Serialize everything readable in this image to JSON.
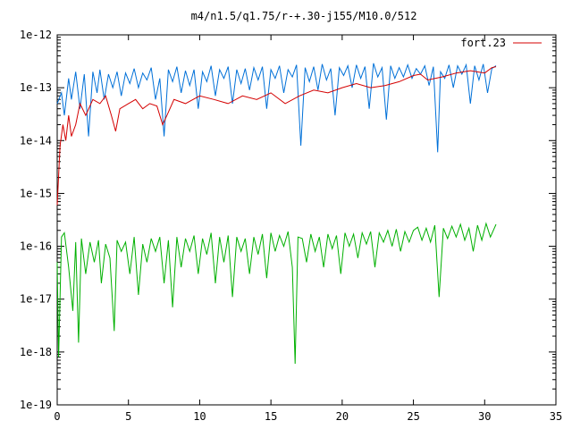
{
  "chart_data": {
    "type": "line",
    "title": "m4/n1.5/q1.75/r-+.30-j155/M10.0/512",
    "xlabel": "",
    "ylabel": "",
    "xlim": [
      0,
      35
    ],
    "ylim": [
      1e-19,
      1e-12
    ],
    "y_scale": "log",
    "x_ticks": [
      "0",
      "5",
      "10",
      "15",
      "20",
      "25",
      "30",
      "35"
    ],
    "x_tick_values": [
      0,
      5,
      10,
      15,
      20,
      25,
      30,
      35
    ],
    "y_ticks": [
      "1e-19",
      "1e-18",
      "1e-17",
      "1e-16",
      "1e-15",
      "1e-14",
      "1e-13",
      "1e-12"
    ],
    "y_tick_exponents": [
      -19,
      -18,
      -17,
      -16,
      -15,
      -14,
      -13,
      -12
    ],
    "grid": false,
    "legend": {
      "position": "top-right",
      "entries": [
        "fort.23"
      ]
    },
    "colors": {
      "red": "#d40000",
      "blue": "#0070d8",
      "green": "#00b000"
    },
    "series": [
      {
        "name": "fort.23",
        "color": "#d40000",
        "x": [
          0,
          0.2,
          0.4,
          0.6,
          0.8,
          1.0,
          1.3,
          1.6,
          2.0,
          2.5,
          3.0,
          3.4,
          3.8,
          4.1,
          4.4,
          5.0,
          5.5,
          6.0,
          6.5,
          7.0,
          7.4,
          7.7,
          8.2,
          9.0,
          10.0,
          11.0,
          12.0,
          13.0,
          14.0,
          15.0,
          16.0,
          17.0,
          18.0,
          19.0,
          20.0,
          21.0,
          22.0,
          23.0,
          24.0,
          25.0,
          25.5,
          26.0,
          27.0,
          28.0,
          29.0,
          30.0,
          30.5,
          30.8
        ],
        "y": [
          6e-16,
          8e-15,
          2e-14,
          1e-14,
          3e-14,
          1.2e-14,
          2e-14,
          5e-14,
          3e-14,
          6e-14,
          5e-14,
          7e-14,
          3e-14,
          1.5e-14,
          4e-14,
          5e-14,
          6e-14,
          4e-14,
          5e-14,
          4.5e-14,
          2e-14,
          3e-14,
          6e-14,
          5e-14,
          7e-14,
          6e-14,
          5e-14,
          7e-14,
          6e-14,
          8e-14,
          5e-14,
          7e-14,
          9e-14,
          8e-14,
          1e-13,
          1.2e-13,
          1e-13,
          1.1e-13,
          1.3e-13,
          1.7e-13,
          1.8e-13,
          1.4e-13,
          1.6e-13,
          1.9e-13,
          2.1e-13,
          1.9e-13,
          2.4e-13,
          2.5e-13
        ]
      },
      {
        "name": "",
        "color": "#0070d8",
        "x": [
          0,
          0.3,
          0.5,
          0.8,
          1.0,
          1.3,
          1.6,
          1.9,
          2.2,
          2.5,
          2.8,
          3.0,
          3.3,
          3.6,
          3.9,
          4.2,
          4.5,
          4.8,
          5.1,
          5.4,
          5.7,
          6.0,
          6.3,
          6.6,
          6.9,
          7.2,
          7.5,
          7.8,
          8.1,
          8.4,
          8.7,
          9.0,
          9.3,
          9.6,
          9.9,
          10.2,
          10.5,
          10.8,
          11.1,
          11.4,
          11.7,
          12.0,
          12.3,
          12.6,
          12.9,
          13.2,
          13.5,
          13.8,
          14.1,
          14.4,
          14.7,
          15.0,
          15.3,
          15.6,
          15.9,
          16.2,
          16.5,
          16.8,
          17.1,
          17.4,
          17.7,
          18.0,
          18.3,
          18.6,
          18.9,
          19.2,
          19.5,
          19.8,
          20.1,
          20.4,
          20.7,
          21.0,
          21.3,
          21.6,
          21.9,
          22.2,
          22.5,
          22.8,
          23.1,
          23.4,
          23.7,
          24.0,
          24.3,
          24.6,
          24.9,
          25.2,
          25.5,
          25.8,
          26.1,
          26.4,
          26.7,
          26.9,
          27.2,
          27.5,
          27.8,
          28.1,
          28.4,
          28.7,
          29.0,
          29.3,
          29.6,
          29.9,
          30.2,
          30.5,
          30.8
        ],
        "y": [
          5e-14,
          8e-14,
          3e-14,
          1.5e-13,
          6e-14,
          2e-13,
          4e-14,
          1.8e-13,
          1.2e-14,
          2e-13,
          8e-14,
          2.2e-13,
          6e-14,
          1.8e-13,
          1e-13,
          2e-13,
          7e-14,
          1.9e-13,
          1.2e-13,
          2.3e-13,
          1e-13,
          1.9e-13,
          1.4e-13,
          2.4e-13,
          6e-14,
          1.5e-13,
          1.2e-14,
          2.2e-13,
          1.3e-13,
          2.5e-13,
          8e-14,
          2.1e-13,
          1.1e-13,
          2.2e-13,
          4e-14,
          2e-13,
          1.3e-13,
          2.6e-13,
          7e-14,
          2.2e-13,
          1.5e-13,
          2.5e-13,
          5e-14,
          2.2e-13,
          1.2e-13,
          2.3e-13,
          9e-14,
          2.4e-13,
          1.4e-13,
          2.5e-13,
          4e-14,
          2.2e-13,
          1.5e-13,
          2.6e-13,
          8e-14,
          2.2e-13,
          1.6e-13,
          2.7e-13,
          8e-15,
          2.4e-13,
          1.3e-13,
          2.5e-13,
          9e-14,
          2.8e-13,
          1.4e-13,
          2.3e-13,
          3e-14,
          2.4e-13,
          1.7e-13,
          2.6e-13,
          1e-13,
          2.7e-13,
          1.5e-13,
          2.5e-13,
          4e-14,
          2.9e-13,
          1.6e-13,
          2.4e-13,
          2.5e-14,
          2.6e-13,
          1.5e-13,
          2.4e-13,
          1.6e-13,
          2.7e-13,
          1.5e-13,
          2.3e-13,
          1.8e-13,
          2.6e-13,
          1.1e-13,
          2.5e-13,
          6e-15,
          2e-13,
          1.5e-13,
          2.7e-13,
          1e-13,
          2.6e-13,
          1.8e-13,
          2.7e-13,
          5e-14,
          2.6e-13,
          1.4e-13,
          2.8e-13,
          8e-14,
          2.3e-13,
          2.6e-13
        ]
      },
      {
        "name": "",
        "color": "#00b000",
        "x": [
          0,
          0.1,
          0.3,
          0.5,
          0.8,
          1.1,
          1.3,
          1.5,
          1.7,
          2.0,
          2.3,
          2.6,
          2.9,
          3.1,
          3.4,
          3.7,
          4.0,
          4.2,
          4.5,
          4.8,
          5.1,
          5.4,
          5.7,
          6.0,
          6.3,
          6.6,
          6.9,
          7.2,
          7.5,
          7.8,
          8.1,
          8.4,
          8.7,
          9.0,
          9.3,
          9.6,
          9.9,
          10.2,
          10.5,
          10.8,
          11.1,
          11.4,
          11.7,
          12.0,
          12.3,
          12.6,
          12.9,
          13.2,
          13.5,
          13.8,
          14.1,
          14.4,
          14.7,
          15.0,
          15.3,
          15.6,
          15.9,
          16.2,
          16.5,
          16.7,
          16.9,
          17.2,
          17.5,
          17.8,
          18.1,
          18.4,
          18.7,
          19.0,
          19.3,
          19.6,
          19.9,
          20.2,
          20.5,
          20.8,
          21.1,
          21.4,
          21.7,
          22.0,
          22.3,
          22.6,
          22.9,
          23.2,
          23.5,
          23.8,
          24.1,
          24.4,
          24.7,
          25.0,
          25.3,
          25.6,
          25.9,
          26.2,
          26.5,
          26.8,
          27.1,
          27.4,
          27.7,
          28.0,
          28.3,
          28.6,
          28.9,
          29.2,
          29.5,
          29.8,
          30.1,
          30.4,
          30.8
        ],
        "y": [
          5e-17,
          8e-19,
          1.5e-16,
          1.8e-16,
          4e-17,
          6e-18,
          1.2e-16,
          1.5e-18,
          1.4e-16,
          3e-17,
          1.2e-16,
          5e-17,
          1.3e-16,
          2e-17,
          1.1e-16,
          6e-17,
          2.5e-18,
          1.3e-16,
          8e-17,
          1.2e-16,
          3e-17,
          1.5e-16,
          1.2e-17,
          1.1e-16,
          5e-17,
          1.4e-16,
          8e-17,
          1.5e-16,
          2e-17,
          1.3e-16,
          7e-18,
          1.5e-16,
          4e-17,
          1.4e-16,
          8e-17,
          1.6e-16,
          3e-17,
          1.4e-16,
          7e-17,
          1.8e-16,
          2e-17,
          1.5e-16,
          5e-17,
          1.6e-16,
          1.1e-17,
          1.5e-16,
          8e-17,
          1.4e-16,
          3e-17,
          1.5e-16,
          7e-17,
          1.7e-16,
          2.5e-17,
          1.8e-16,
          8e-17,
          1.6e-16,
          1e-16,
          1.9e-16,
          4e-17,
          6e-19,
          1.5e-16,
          1.4e-16,
          5e-17,
          1.7e-16,
          8e-17,
          1.5e-16,
          4e-17,
          1.7e-16,
          9e-17,
          1.6e-16,
          3e-17,
          1.8e-16,
          1e-16,
          1.7e-16,
          6e-17,
          1.8e-16,
          1.1e-16,
          1.9e-16,
          4e-17,
          1.8e-16,
          1.2e-16,
          2e-16,
          1e-16,
          2.1e-16,
          8e-17,
          1.9e-16,
          1.2e-16,
          2e-16,
          2.3e-16,
          1.3e-16,
          2.2e-16,
          1.2e-16,
          2.5e-16,
          1.1e-17,
          2.2e-16,
          1.4e-16,
          2.4e-16,
          1.5e-16,
          2.6e-16,
          1.3e-16,
          2.2e-16,
          8e-17,
          2.5e-16,
          1.3e-16,
          2.7e-16,
          1.5e-16,
          2.6e-16
        ]
      }
    ]
  }
}
